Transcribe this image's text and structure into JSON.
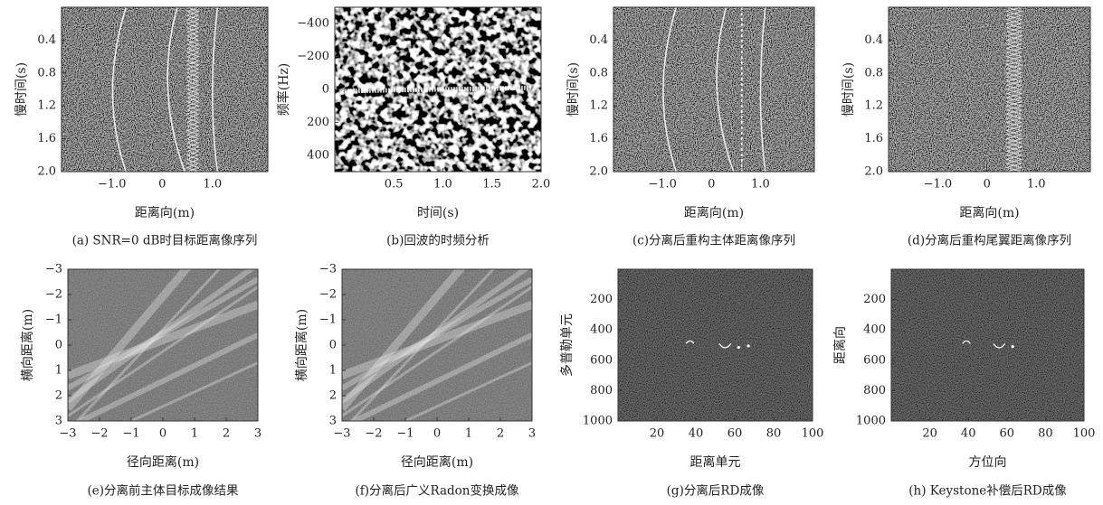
{
  "chart_data": [
    {
      "type": "image",
      "caption": "(a) SNR=0 dB时目标距离像序列",
      "xlabel": "距离向(m)",
      "ylabel": "慢时间(s)",
      "xlim": [
        -2,
        2.1
      ],
      "ylim": [
        2,
        0
      ],
      "xticks": [
        {
          "value": -1,
          "label": "−1.0"
        },
        0,
        {
          "value": 1,
          "label": "1.0"
        }
      ],
      "yticks": [
        0.4,
        0.8,
        1.2,
        1.6,
        {
          "value": 2,
          "label": "2.0"
        }
      ]
    },
    {
      "type": "image",
      "caption": "(b)回波的时频分析",
      "xlabel": "时间(s)",
      "ylabel": "频率(Hz)",
      "xlim": [
        -0.1,
        2
      ],
      "ylim": [
        500,
        -500
      ],
      "xticks": [
        0.5,
        {
          "value": 1,
          "label": "1.0"
        },
        1.5,
        {
          "value": 2,
          "label": "2.0"
        }
      ],
      "yticks": [
        {
          "value": -400,
          "label": "−400"
        },
        {
          "value": -200,
          "label": "−200"
        },
        0,
        200,
        400
      ]
    },
    {
      "type": "image",
      "caption": "(c)分离后重构主体距离像序列",
      "xlabel": "距离向(m)",
      "ylabel": "慢时间(s)",
      "xlim": [
        -2,
        2.1
      ],
      "ylim": [
        2,
        0
      ],
      "xticks": [
        {
          "value": -1,
          "label": "−1.0"
        },
        0,
        {
          "value": 1,
          "label": "1.0"
        }
      ],
      "yticks": [
        0.4,
        0.8,
        1.2,
        1.6,
        {
          "value": 2,
          "label": "2.0"
        }
      ]
    },
    {
      "type": "image",
      "caption": "(d)分离后重构尾翼距离像序列",
      "xlabel": "距离向(m)",
      "ylabel": "慢时间(s)",
      "xlim": [
        -2,
        2.1
      ],
      "ylim": [
        2,
        0
      ],
      "xticks": [
        {
          "value": -1,
          "label": "−1.0"
        },
        0,
        {
          "value": 1,
          "label": "1.0"
        }
      ],
      "yticks": [
        0.4,
        0.8,
        1.2,
        1.6,
        {
          "value": 2,
          "label": "2.0"
        }
      ]
    },
    {
      "type": "image",
      "caption": "(e)分离前主体目标成像结果",
      "xlabel": "径向距离(m)",
      "ylabel": "横向距离(m)",
      "xlim": [
        -3,
        3
      ],
      "ylim": [
        3,
        -3
      ],
      "xticks": [
        {
          "value": -3,
          "label": "−3"
        },
        {
          "value": -2,
          "label": "−2"
        },
        {
          "value": -1,
          "label": "−1"
        },
        0,
        1,
        2,
        3
      ],
      "yticks": [
        {
          "value": -3,
          "label": "−3"
        },
        {
          "value": -2,
          "label": "−2"
        },
        {
          "value": -1,
          "label": "−1"
        },
        0,
        1,
        2,
        3
      ]
    },
    {
      "type": "image",
      "caption": "(f)分离后广义Radon变换成像",
      "xlabel": "径向距离(m)",
      "ylabel": "横向距离(m)",
      "xlim": [
        -3,
        3
      ],
      "ylim": [
        3,
        -3
      ],
      "xticks": [
        {
          "value": -3,
          "label": "−3"
        },
        {
          "value": -2,
          "label": "−2"
        },
        {
          "value": -1,
          "label": "−1"
        },
        0,
        1,
        2,
        3
      ],
      "yticks": [
        {
          "value": -3,
          "label": "−3"
        },
        {
          "value": -2,
          "label": "−2"
        },
        {
          "value": -1,
          "label": "−1"
        },
        0,
        1,
        2,
        3
      ]
    },
    {
      "type": "image",
      "caption": "(g)分离后RD成像",
      "xlabel": "距离单元",
      "ylabel": "多普勒单元",
      "xlim": [
        0,
        100
      ],
      "ylim": [
        1000,
        0
      ],
      "xticks": [
        20,
        40,
        60,
        80,
        100
      ],
      "yticks": [
        200,
        400,
        600,
        800,
        1000
      ]
    },
    {
      "type": "image",
      "caption": "(h) Keystone补偿后RD成像",
      "xlabel": "方位向",
      "ylabel": "距离向",
      "xlim": [
        0,
        100
      ],
      "ylim": [
        1000,
        0
      ],
      "xticks": [
        20,
        40,
        60,
        80,
        100
      ],
      "yticks": [
        200,
        400,
        600,
        800,
        1000
      ]
    }
  ]
}
